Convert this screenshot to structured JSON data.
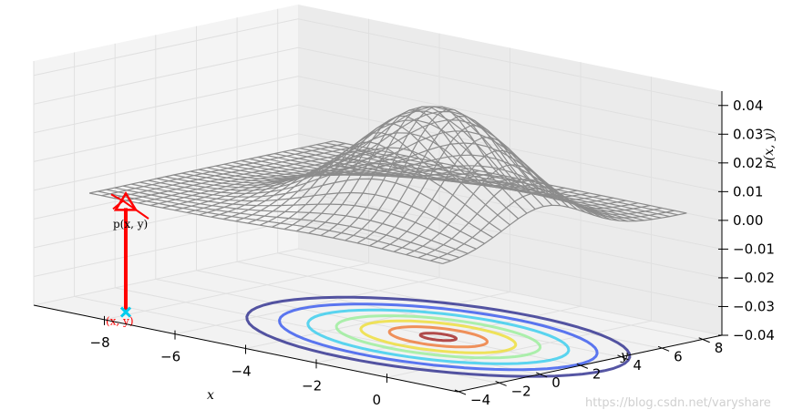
{
  "chart_data": {
    "type": "surface3d",
    "title": "",
    "xlabel": "x",
    "ylabel": "y",
    "zlabel": "p(x, y)",
    "xlim": [
      -10,
      2
    ],
    "ylim": [
      -4,
      9
    ],
    "zlim": [
      -0.04,
      0.045
    ],
    "x_ticks": [
      "−8",
      "−6",
      "−4",
      "−2",
      "0"
    ],
    "x_tick_values": [
      -8,
      -6,
      -4,
      -2,
      0
    ],
    "y_ticks": [
      "−4",
      "−2",
      "0",
      "2",
      "4",
      "6",
      "8"
    ],
    "y_tick_values": [
      -4,
      -2,
      0,
      2,
      4,
      6,
      8
    ],
    "z_ticks": [
      "0.04",
      "0.03",
      "0.02",
      "0.01",
      "0.00",
      "−0.01",
      "−0.02",
      "−0.03",
      "−0.04"
    ],
    "z_tick_values": [
      0.04,
      0.03,
      0.02,
      0.01,
      0.0,
      -0.01,
      -0.02,
      -0.03,
      -0.04
    ],
    "surface": {
      "function": "bivariate normal",
      "mean": [
        -2,
        2
      ],
      "cov": [
        [
          4,
          0
        ],
        [
          0,
          4
        ]
      ],
      "peak_z": 0.04,
      "x_range": [
        -9,
        1
      ],
      "y_range": [
        -3,
        9
      ],
      "grid_lines": 30,
      "color": "#8c8c8c"
    },
    "contours": {
      "z_offset": -0.04,
      "colors": [
        "#2a2a8c",
        "#3355ee",
        "#33ccee",
        "#99ee99",
        "#eedd33",
        "#ee7733",
        "#a02020"
      ]
    },
    "grid": true,
    "annotations": [
      {
        "text": "p(x, y)",
        "color": "#000000"
      },
      {
        "text": "(x, y)",
        "color": "#ff0000"
      }
    ]
  },
  "watermark": "https://blog.csdn.net/varyshare"
}
